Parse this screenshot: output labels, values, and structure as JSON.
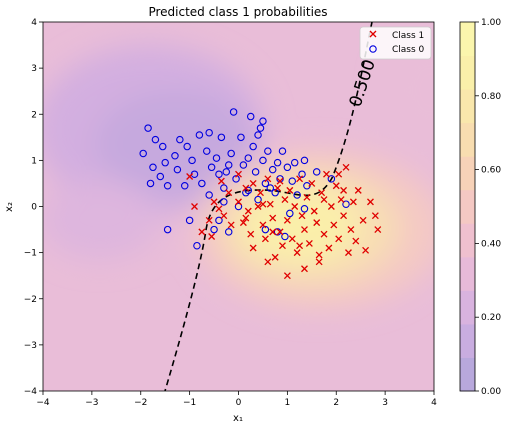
{
  "chart_data": {
    "type": "scatter",
    "title": "Predicted class 1 probabilities",
    "xlabel": "x₁",
    "ylabel": "x₂",
    "xlim": [
      -4,
      4
    ],
    "ylim": [
      -4,
      4
    ],
    "x_ticks": [
      "−4",
      "−3",
      "−2",
      "−1",
      "0",
      "1",
      "2",
      "3",
      "4"
    ],
    "y_ticks": [
      "−4",
      "−3",
      "−2",
      "−1",
      "0",
      "1",
      "2",
      "3",
      "4"
    ],
    "background": "filled probability contours (0.00 purple → 1.00 yellow)",
    "decision_boundary": {
      "label": "0.500",
      "style": "black dashed"
    },
    "colorbar": {
      "ticks": [
        "0.00",
        "0.20",
        "0.40",
        "0.60",
        "0.80",
        "1.00"
      ],
      "colors": [
        "#b8a8dc",
        "#c9ade0",
        "#d9b3df",
        "#e7bad9",
        "#efc0cf",
        "#f4c8c3",
        "#f7d2b8",
        "#f8ddb0",
        "#f9e7ac",
        "#faf0aa",
        "#fbf6ad"
      ]
    },
    "legend": {
      "position": "top-right"
    },
    "series": [
      {
        "name": "Class 1",
        "marker": "x",
        "color": "#e00000",
        "points": [
          [
            -1.0,
            0.65
          ],
          [
            -0.9,
            0.0
          ],
          [
            -0.75,
            -0.55
          ],
          [
            -0.55,
            -0.65
          ],
          [
            -0.6,
            -0.3
          ],
          [
            -0.5,
            0.1
          ],
          [
            -0.4,
            -0.05
          ],
          [
            -0.35,
            0.55
          ],
          [
            -0.3,
            -0.2
          ],
          [
            -0.2,
            0.3
          ],
          [
            -0.15,
            -0.4
          ],
          [
            0.0,
            0.7
          ],
          [
            0.0,
            0.1
          ],
          [
            0.1,
            -0.35
          ],
          [
            0.15,
            0.4
          ],
          [
            0.2,
            -0.1
          ],
          [
            0.25,
            -0.6
          ],
          [
            0.3,
            0.5
          ],
          [
            0.3,
            -0.9
          ],
          [
            0.4,
            0.0
          ],
          [
            0.45,
            0.3
          ],
          [
            0.5,
            -0.4
          ],
          [
            0.55,
            -0.7
          ],
          [
            0.6,
            0.6
          ],
          [
            0.65,
            0.05
          ],
          [
            0.7,
            -0.25
          ],
          [
            0.75,
            -1.1
          ],
          [
            0.8,
            0.4
          ],
          [
            0.85,
            -0.55
          ],
          [
            0.9,
            -0.85
          ],
          [
            0.95,
            0.15
          ],
          [
            1.0,
            -0.3
          ],
          [
            1.0,
            -1.5
          ],
          [
            1.05,
            0.35
          ],
          [
            1.1,
            -0.7
          ],
          [
            1.15,
            0.0
          ],
          [
            1.2,
            -1.0
          ],
          [
            1.25,
            0.6
          ],
          [
            1.3,
            -0.2
          ],
          [
            1.35,
            -0.5
          ],
          [
            1.4,
            0.2
          ],
          [
            1.45,
            -0.8
          ],
          [
            1.5,
            0.5
          ],
          [
            1.55,
            -0.1
          ],
          [
            1.6,
            -0.35
          ],
          [
            1.65,
            -1.05
          ],
          [
            1.7,
            0.3
          ],
          [
            1.75,
            -0.6
          ],
          [
            1.8,
            0.7
          ],
          [
            1.85,
            -0.9
          ],
          [
            1.9,
            0.0
          ],
          [
            1.95,
            -0.4
          ],
          [
            2.0,
            0.45
          ],
          [
            2.05,
            -0.7
          ],
          [
            2.1,
            0.15
          ],
          [
            2.15,
            -0.2
          ],
          [
            2.2,
            0.85
          ],
          [
            2.25,
            -1.0
          ],
          [
            2.3,
            -0.5
          ],
          [
            2.35,
            0.1
          ],
          [
            2.4,
            -0.75
          ],
          [
            2.45,
            0.35
          ],
          [
            2.55,
            -0.3
          ],
          [
            2.6,
            -0.95
          ],
          [
            2.7,
            0.1
          ],
          [
            2.8,
            -0.2
          ],
          [
            2.85,
            -0.5
          ],
          [
            1.35,
            -1.35
          ],
          [
            0.6,
            -1.2
          ],
          [
            1.65,
            -1.2
          ],
          [
            2.05,
            0.7
          ],
          [
            0.85,
            0.55
          ],
          [
            0.15,
            -0.25
          ],
          [
            1.25,
            -0.85
          ],
          [
            0.5,
            0.05
          ],
          [
            2.15,
            0.35
          ],
          [
            1.75,
            0.15
          ],
          [
            0.7,
            -0.55
          ]
        ]
      },
      {
        "name": "Class 0",
        "marker": "o",
        "color": "#0000e0",
        "points": [
          [
            -1.95,
            1.15
          ],
          [
            -1.85,
            1.7
          ],
          [
            -1.8,
            0.5
          ],
          [
            -1.75,
            0.85
          ],
          [
            -1.6,
            0.65
          ],
          [
            -1.55,
            1.3
          ],
          [
            -1.5,
            0.95
          ],
          [
            -1.45,
            0.45
          ],
          [
            -1.3,
            1.1
          ],
          [
            -1.25,
            0.8
          ],
          [
            -1.1,
            0.45
          ],
          [
            -1.05,
            1.3
          ],
          [
            -0.95,
            1.0
          ],
          [
            -0.9,
            0.7
          ],
          [
            -0.8,
            1.55
          ],
          [
            -0.75,
            0.5
          ],
          [
            -0.65,
            1.2
          ],
          [
            -0.6,
            1.6
          ],
          [
            -0.55,
            0.85
          ],
          [
            -0.45,
            1.05
          ],
          [
            -0.4,
            0.7
          ],
          [
            -0.35,
            1.5
          ],
          [
            -0.3,
            0.4
          ],
          [
            -0.2,
            0.9
          ],
          [
            -0.15,
            1.15
          ],
          [
            -0.1,
            2.05
          ],
          [
            -0.05,
            0.6
          ],
          [
            0.05,
            1.5
          ],
          [
            0.1,
            0.9
          ],
          [
            0.15,
            0.3
          ],
          [
            0.2,
            1.05
          ],
          [
            0.3,
            1.3
          ],
          [
            0.35,
            0.75
          ],
          [
            0.4,
            1.55
          ],
          [
            0.45,
            1.7
          ],
          [
            0.5,
            1.0
          ],
          [
            0.5,
            1.85
          ],
          [
            0.55,
            0.5
          ],
          [
            0.6,
            1.2
          ],
          [
            0.7,
            0.8
          ],
          [
            0.75,
            0.3
          ],
          [
            0.8,
            0.95
          ],
          [
            0.85,
            0.6
          ],
          [
            0.9,
            1.2
          ],
          [
            1.0,
            0.85
          ],
          [
            1.1,
            0.55
          ],
          [
            1.15,
            0.95
          ],
          [
            1.2,
            0.25
          ],
          [
            1.3,
            0.7
          ],
          [
            1.35,
            1.0
          ],
          [
            1.4,
            0.45
          ],
          [
            -1.0,
            -0.3
          ],
          [
            -0.85,
            -0.85
          ],
          [
            -0.5,
            -0.5
          ],
          [
            -0.4,
            -0.3
          ],
          [
            -0.3,
            0.1
          ],
          [
            -0.2,
            -0.55
          ],
          [
            0.0,
            0.0
          ],
          [
            0.2,
            0.35
          ],
          [
            0.4,
            0.15
          ],
          [
            0.55,
            -0.5
          ],
          [
            0.8,
            -0.55
          ],
          [
            0.95,
            -0.65
          ],
          [
            1.05,
            -0.15
          ],
          [
            1.35,
            -0.05
          ],
          [
            1.6,
            0.75
          ],
          [
            1.9,
            0.6
          ],
          [
            2.2,
            0.05
          ],
          [
            -1.45,
            -0.5
          ],
          [
            -0.25,
            0.75
          ],
          [
            0.65,
            0.4
          ],
          [
            -0.6,
            0.25
          ],
          [
            -1.7,
            1.45
          ],
          [
            -1.2,
            1.45
          ],
          [
            0.25,
            1.95
          ]
        ]
      }
    ]
  }
}
